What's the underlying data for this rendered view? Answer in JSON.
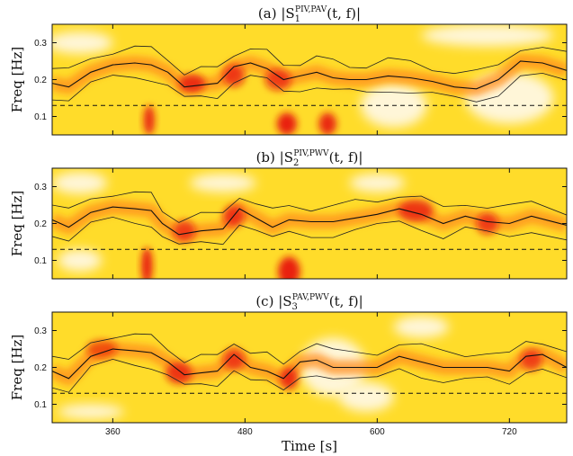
{
  "chart_data": [
    {
      "type": "heatmap",
      "panel": "a",
      "title": "(a) |S",
      "title_sub": "1",
      "title_sup": "PIV,PAV",
      "title_suffix": "(t, f)|",
      "ylabel": "Freq [Hz]",
      "xlim": [
        305,
        772
      ],
      "ylim": [
        0.05,
        0.35
      ],
      "yticks": [
        0.1,
        0.2,
        0.3
      ],
      "threshold": 0.13,
      "ridge_t": [
        305,
        320,
        340,
        360,
        380,
        395,
        410,
        425,
        440,
        455,
        470,
        485,
        500,
        515,
        530,
        545,
        560,
        575,
        590,
        610,
        630,
        650,
        670,
        690,
        710,
        730,
        750,
        772
      ],
      "ridge_f": [
        0.19,
        0.18,
        0.22,
        0.24,
        0.245,
        0.24,
        0.22,
        0.18,
        0.185,
        0.19,
        0.235,
        0.245,
        0.23,
        0.2,
        0.21,
        0.22,
        0.205,
        0.2,
        0.2,
        0.21,
        0.205,
        0.195,
        0.18,
        0.175,
        0.2,
        0.25,
        0.245,
        0.225
      ],
      "hotspots": [
        {
          "t": 393,
          "f": 0.09,
          "w": 5,
          "h": 0.04,
          "a": 0.9
        },
        {
          "t": 432,
          "f": 0.19,
          "w": 12,
          "h": 0.025,
          "a": 0.85
        },
        {
          "t": 470,
          "f": 0.21,
          "w": 10,
          "h": 0.03,
          "a": 0.75
        },
        {
          "t": 518,
          "f": 0.08,
          "w": 9,
          "h": 0.03,
          "a": 0.95
        },
        {
          "t": 555,
          "f": 0.08,
          "w": 8,
          "h": 0.03,
          "a": 0.9
        },
        {
          "t": 510,
          "f": 0.2,
          "w": 12,
          "h": 0.03,
          "a": 0.7
        }
      ],
      "white_patches": [
        {
          "t": 615,
          "f": 0.13,
          "w": 30,
          "h": 0.06
        },
        {
          "t": 720,
          "f": 0.15,
          "w": 40,
          "h": 0.07
        },
        {
          "t": 700,
          "f": 0.32,
          "w": 60,
          "h": 0.03
        },
        {
          "t": 330,
          "f": 0.3,
          "w": 30,
          "h": 0.03
        }
      ]
    },
    {
      "type": "heatmap",
      "panel": "b",
      "title": "(b) |S",
      "title_sub": "2",
      "title_sup": "PIV,PWV",
      "title_suffix": "(t, f)|",
      "ylabel": "Freq [Hz]",
      "xlim": [
        305,
        772
      ],
      "ylim": [
        0.05,
        0.35
      ],
      "yticks": [
        0.1,
        0.2,
        0.3
      ],
      "threshold": 0.13,
      "ridge_t": [
        305,
        320,
        340,
        360,
        380,
        395,
        405,
        420,
        440,
        460,
        475,
        490,
        505,
        520,
        540,
        560,
        580,
        600,
        620,
        640,
        660,
        680,
        700,
        720,
        740,
        772
      ],
      "ridge_f": [
        0.21,
        0.19,
        0.23,
        0.245,
        0.24,
        0.235,
        0.2,
        0.17,
        0.18,
        0.185,
        0.24,
        0.215,
        0.19,
        0.21,
        0.205,
        0.205,
        0.215,
        0.225,
        0.24,
        0.225,
        0.2,
        0.22,
        0.205,
        0.2,
        0.22,
        0.195
      ],
      "hotspots": [
        {
          "t": 391,
          "f": 0.085,
          "w": 5,
          "h": 0.05,
          "a": 0.95
        },
        {
          "t": 520,
          "f": 0.07,
          "w": 10,
          "h": 0.04,
          "a": 0.95
        },
        {
          "t": 470,
          "f": 0.22,
          "w": 10,
          "h": 0.03,
          "a": 0.75
        },
        {
          "t": 635,
          "f": 0.235,
          "w": 16,
          "h": 0.03,
          "a": 0.8
        },
        {
          "t": 700,
          "f": 0.2,
          "w": 10,
          "h": 0.03,
          "a": 0.7
        },
        {
          "t": 425,
          "f": 0.18,
          "w": 10,
          "h": 0.03,
          "a": 0.7
        }
      ],
      "white_patches": [
        {
          "t": 330,
          "f": 0.31,
          "w": 25,
          "h": 0.03
        },
        {
          "t": 460,
          "f": 0.31,
          "w": 30,
          "h": 0.025
        },
        {
          "t": 600,
          "f": 0.31,
          "w": 25,
          "h": 0.025
        },
        {
          "t": 330,
          "f": 0.1,
          "w": 20,
          "h": 0.03
        }
      ]
    },
    {
      "type": "heatmap",
      "panel": "c",
      "title": "(c) |S",
      "title_sub": "3",
      "title_sup": "PAV,PWV",
      "title_suffix": "(t, f)|",
      "ylabel": "Freq [Hz]",
      "xlabel": "Time [s]",
      "xlim": [
        305,
        772
      ],
      "ylim": [
        0.05,
        0.35
      ],
      "yticks": [
        0.1,
        0.2,
        0.3
      ],
      "xticks": [
        360,
        480,
        600,
        720
      ],
      "threshold": 0.13,
      "ridge_t": [
        305,
        320,
        340,
        360,
        380,
        395,
        410,
        425,
        440,
        455,
        470,
        485,
        500,
        515,
        530,
        545,
        560,
        600,
        620,
        640,
        660,
        680,
        700,
        720,
        735,
        750,
        772
      ],
      "ridge_f": [
        0.19,
        0.17,
        0.23,
        0.25,
        0.245,
        0.24,
        0.215,
        0.18,
        0.185,
        0.19,
        0.235,
        0.2,
        0.19,
        0.17,
        0.215,
        0.22,
        0.2,
        0.2,
        0.23,
        0.215,
        0.2,
        0.2,
        0.2,
        0.19,
        0.23,
        0.235,
        0.2
      ],
      "hotspots": [
        {
          "t": 420,
          "f": 0.185,
          "w": 12,
          "h": 0.03,
          "a": 0.8
        },
        {
          "t": 520,
          "f": 0.17,
          "w": 8,
          "h": 0.03,
          "a": 0.85
        },
        {
          "t": 470,
          "f": 0.22,
          "w": 10,
          "h": 0.03,
          "a": 0.7
        },
        {
          "t": 740,
          "f": 0.22,
          "w": 10,
          "h": 0.03,
          "a": 0.7
        },
        {
          "t": 350,
          "f": 0.25,
          "w": 14,
          "h": 0.025,
          "a": 0.6
        }
      ],
      "white_patches": [
        {
          "t": 560,
          "f": 0.2,
          "w": 30,
          "h": 0.08
        },
        {
          "t": 590,
          "f": 0.12,
          "w": 25,
          "h": 0.04
        },
        {
          "t": 340,
          "f": 0.08,
          "w": 30,
          "h": 0.02
        },
        {
          "t": 640,
          "f": 0.31,
          "w": 25,
          "h": 0.03
        }
      ]
    }
  ]
}
